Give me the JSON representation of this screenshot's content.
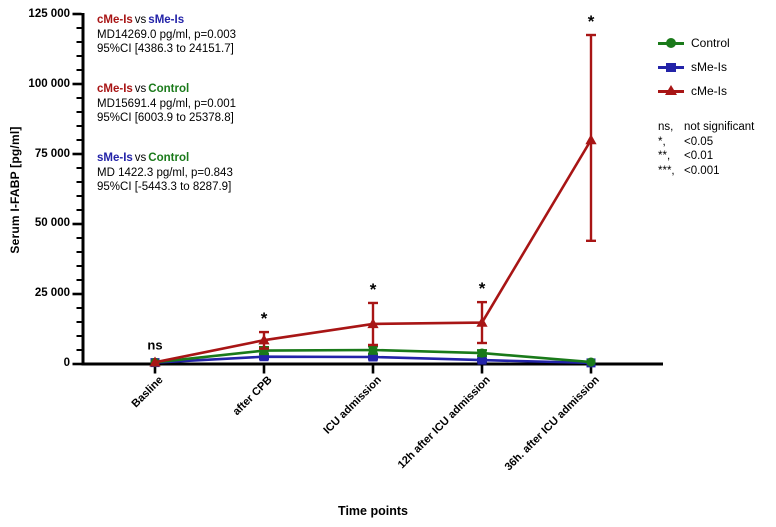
{
  "figure": {
    "y_axis_title": "Serum I-FABP [pg/ml]",
    "x_axis_title": "Time points"
  },
  "colors": {
    "control_green": "#1a7a1a",
    "sme_blue": "#2323a8",
    "cme_red": "#a81515",
    "axis_black": "#000000"
  },
  "annotations": [
    {
      "a": "cMe-Is",
      "a_color": "#a81515",
      "vs": "vs",
      "b": "sMe-Is",
      "b_color": "#2323a8",
      "md": "MD14269.0 pg/ml, p=0.003",
      "ci": "95%CI [4386.3 to 24151.7]"
    },
    {
      "a": "cMe-Is",
      "a_color": "#a81515",
      "vs": "vs",
      "b": "Control",
      "b_color": "#1a7a1a",
      "md": "MD15691.4 pg/ml, p=0.001",
      "ci": "95%CI [6003.9 to 25378.8]"
    },
    {
      "a": "sMe-Is",
      "a_color": "#2323a8",
      "vs": "vs",
      "b": "Control",
      "b_color": "#1a7a1a",
      "md": "MD 1422.3 pg/ml, p=0.843",
      "ci": "95%CI [-5443.3 to 8287.9]"
    }
  ],
  "legend": {
    "items": [
      {
        "label": "Control",
        "color": "#1a7a1a",
        "marker": "circle"
      },
      {
        "label": "sMe-Is",
        "color": "#2323a8",
        "marker": "square"
      },
      {
        "label": "cMe-Is",
        "color": "#a81515",
        "marker": "triangle"
      }
    ]
  },
  "sig_key": {
    "rows": [
      {
        "symbol": "ns,",
        "text": "not significant"
      },
      {
        "symbol": "*,",
        "text": "<0.05"
      },
      {
        "symbol": "**,",
        "text": "<0.01"
      },
      {
        "symbol": "***,",
        "text": "<0.001"
      }
    ]
  },
  "chart_data": {
    "type": "line",
    "title": "",
    "xlabel": "Time points",
    "ylabel": "Serum I-FABP [pg/ml]",
    "categories": [
      "Basline",
      "after CPB",
      "ICU admission",
      "12h after ICU admission",
      "36h. after ICU admission"
    ],
    "series": [
      {
        "name": "Control",
        "color": "#1a7a1a",
        "marker": "circle",
        "values": [
          600,
          4800,
          5000,
          3900,
          700
        ],
        "ci_low": [
          300,
          3600,
          3700,
          2900,
          300
        ],
        "ci_high": [
          900,
          6000,
          6300,
          4900,
          1100
        ]
      },
      {
        "name": "sMe-Is",
        "color": "#2323a8",
        "marker": "square",
        "values": [
          500,
          2600,
          2500,
          1400,
          400
        ],
        "ci_low": [
          300,
          1800,
          1700,
          900,
          200
        ],
        "ci_high": [
          700,
          3400,
          3300,
          1900,
          600
        ]
      },
      {
        "name": "cMe-Is",
        "color": "#a81515",
        "marker": "triangle",
        "values": [
          600,
          8500,
          14300,
          14800,
          80000
        ],
        "ci_low": [
          400,
          5500,
          6800,
          7500,
          44000
        ],
        "ci_high": [
          800,
          11400,
          21800,
          22100,
          117500
        ]
      }
    ],
    "significance": [
      "ns",
      "*",
      "*",
      "*",
      "*"
    ],
    "ylim": [
      0,
      125000
    ],
    "yticks": [
      0,
      25000,
      50000,
      75000,
      100000,
      125000
    ],
    "ytick_labels": [
      "0",
      "25 000",
      "50 000",
      "75 000",
      "100 000",
      "125 000"
    ],
    "minor_tick_step": 5000,
    "grid": false,
    "legend_position": "right"
  }
}
